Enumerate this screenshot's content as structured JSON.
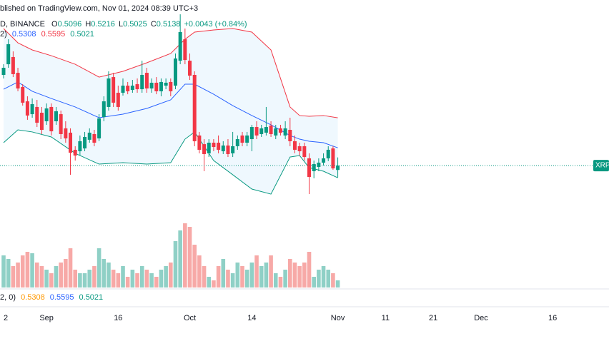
{
  "header": {
    "published": "blished on TradingView.com, Nov 01, 2024 08:39 UTC+3",
    "symbol": "D, BINANCE",
    "ohlc_labels": [
      "O",
      "H",
      "L",
      "C"
    ],
    "change": "+0.0043 (+0.84%)",
    "bands_params": "2)",
    "volume_params": "2, 0)",
    "price_label": "XRP"
  },
  "chart_data": {
    "type": "candlestick",
    "categories": [
      null,
      null,
      null,
      null,
      null,
      null,
      null,
      null,
      null,
      null,
      null,
      null,
      null,
      null,
      null,
      null,
      null,
      null,
      null,
      null,
      null,
      null,
      null,
      null,
      null,
      null,
      null,
      null,
      null,
      null,
      null,
      null,
      null,
      null,
      null,
      null,
      null,
      null,
      null,
      null,
      null,
      null,
      null,
      null,
      null,
      null,
      null,
      null,
      null,
      null,
      null,
      null,
      null,
      null,
      null,
      null,
      null,
      null,
      null,
      null,
      null,
      null,
      null,
      null,
      null,
      null,
      null,
      null,
      null,
      null,
      null
    ],
    "open": [
      0.6006,
      0.6108,
      0.6177,
      0.6026,
      0.589,
      0.5753,
      0.563,
      0.5699,
      0.5644,
      0.5562,
      0.5699,
      0.5562,
      0.563,
      0.5494,
      0.5453,
      0.5289,
      0.5275,
      0.5302,
      0.5385,
      0.5439,
      0.5398,
      0.5603,
      0.5699,
      0.5985,
      0.5835,
      0.5835,
      0.5903,
      0.5862,
      0.5917,
      0.5869,
      0.6026,
      0.5876,
      0.5931,
      0.5849,
      0.5903,
      0.5938,
      0.5903,
      0.6142,
      0.6347,
      0.6142,
      0.6006,
      0.5426,
      0.5343,
      0.5255,
      0.5357,
      0.5357,
      0.5275,
      0.533,
      0.5255,
      0.5323,
      0.5426,
      0.5357,
      0.5391,
      0.5507,
      0.5439,
      0.5453,
      0.5521,
      0.5426,
      0.5494,
      0.5426,
      0.548,
      0.5371,
      0.5323,
      0.5323,
      0.5207,
      0.5084,
      0.5125,
      0.5166,
      0.5207,
      0.5302,
      0.5096
    ],
    "high": [
      0.6108,
      0.6347,
      0.6231,
      0.6074,
      0.5917,
      0.5801,
      0.578,
      0.5767,
      0.5699,
      0.5733,
      0.5733,
      0.5699,
      0.5664,
      0.5562,
      0.5494,
      0.5323,
      0.5426,
      0.546,
      0.5494,
      0.548,
      0.563,
      0.5801,
      0.604,
      0.6026,
      0.5903,
      0.5972,
      0.5938,
      0.5958,
      0.5972,
      0.6142,
      0.6074,
      0.5972,
      0.5985,
      0.5972,
      0.5972,
      0.5972,
      0.6211,
      0.6586,
      0.645,
      0.6211,
      0.604,
      0.546,
      0.5391,
      0.5391,
      0.5391,
      0.5426,
      0.5371,
      0.5391,
      0.546,
      0.5426,
      0.546,
      0.546,
      0.5528,
      0.5562,
      0.5528,
      0.5699,
      0.5562,
      0.5528,
      0.5528,
      0.5562,
      0.5596,
      0.5426,
      0.5357,
      0.5357,
      0.5255,
      0.5186,
      0.5207,
      0.5255,
      0.5323,
      0.5323,
      0.5216
    ],
    "low": [
      0.5972,
      0.6074,
      0.5985,
      0.5849,
      0.5712,
      0.5576,
      0.5596,
      0.5507,
      0.5439,
      0.5528,
      0.5426,
      0.5528,
      0.5391,
      0.5357,
      0.505,
      0.5186,
      0.5234,
      0.5275,
      0.5357,
      0.5323,
      0.5371,
      0.5562,
      0.5664,
      0.5699,
      0.5664,
      0.5808,
      0.5821,
      0.5835,
      0.5835,
      0.5835,
      0.5835,
      0.5835,
      0.5821,
      0.5801,
      0.5869,
      0.5801,
      0.5869,
      0.6108,
      0.6108,
      0.5958,
      0.5323,
      0.5255,
      0.5084,
      0.522,
      0.5275,
      0.5255,
      0.5248,
      0.522,
      0.522,
      0.5289,
      0.5323,
      0.5323,
      0.5275,
      0.5391,
      0.5412,
      0.5426,
      0.5412,
      0.5391,
      0.5426,
      0.5391,
      0.5323,
      0.5255,
      0.5234,
      0.5186,
      0.4865,
      0.5016,
      0.5084,
      0.5138,
      0.518,
      0.5097,
      0.5025
    ],
    "close": [
      0.6074,
      0.63,
      0.6013,
      0.5876,
      0.574,
      0.5617,
      0.5726,
      0.5548,
      0.548,
      0.5685,
      0.5466,
      0.5658,
      0.5439,
      0.5398,
      0.5261,
      0.5234,
      0.5371,
      0.5412,
      0.5453,
      0.5357,
      0.5589,
      0.5753,
      0.5972,
      0.574,
      0.5699,
      0.5903,
      0.5849,
      0.5903,
      0.5869,
      0.6006,
      0.5876,
      0.5931,
      0.5849,
      0.5938,
      0.5931,
      0.5849,
      0.6163,
      0.6416,
      0.6149,
      0.5999,
      0.5371,
      0.5289,
      0.5248,
      0.5357,
      0.5316,
      0.5289,
      0.533,
      0.5248,
      0.5323,
      0.5391,
      0.5357,
      0.5426,
      0.5507,
      0.5426,
      0.5494,
      0.5507,
      0.5439,
      0.5494,
      0.5453,
      0.5494,
      0.5371,
      0.5289,
      0.5275,
      0.522,
      0.5029,
      0.5152,
      0.5166,
      0.5207,
      0.5289,
      0.5111,
      0.5138
    ],
    "volume": [
      45,
      40,
      30,
      35,
      45,
      50,
      48,
      35,
      30,
      25,
      20,
      30,
      35,
      40,
      55,
      25,
      20,
      20,
      25,
      30,
      55,
      40,
      35,
      25,
      20,
      30,
      15,
      25,
      20,
      30,
      25,
      20,
      15,
      25,
      30,
      35,
      65,
      80,
      90,
      85,
      60,
      45,
      30,
      15,
      10,
      30,
      40,
      25,
      20,
      35,
      30,
      25,
      35,
      45,
      30,
      35,
      45,
      20,
      15,
      25,
      40,
      35,
      30,
      35,
      50,
      15,
      25,
      30,
      25,
      20,
      10
    ],
    "up_color": "#089981",
    "down_color": "#f23645",
    "volume_colors": {
      "up": "#8fd0c6",
      "down": "#f7a9a7"
    },
    "bands": [
      {
        "color": "#f23645",
        "x": [
          0,
          3,
          6,
          10,
          15,
          20,
          25,
          30,
          35,
          38,
          40,
          44,
          48,
          52,
          56,
          60,
          62,
          64,
          67,
          70
        ],
        "values": [
          0.645,
          0.6313,
          0.6245,
          0.619,
          0.6108,
          0.5985,
          0.604,
          0.6122,
          0.6211,
          0.6347,
          0.6416,
          0.6436,
          0.645,
          0.6416,
          0.6245,
          0.5699,
          0.5617,
          0.561,
          0.5617,
          0.5595
        ]
      },
      {
        "color": "#2962ff",
        "x": [
          0,
          3,
          6,
          10,
          15,
          20,
          25,
          30,
          35,
          38,
          40,
          44,
          48,
          52,
          56,
          60,
          62,
          64,
          67,
          70
        ],
        "values": [
          0.5869,
          0.5938,
          0.5849,
          0.578,
          0.5699,
          0.5596,
          0.563,
          0.5685,
          0.5767,
          0.5917,
          0.5917,
          0.5821,
          0.5712,
          0.5617,
          0.5528,
          0.5426,
          0.5391,
          0.5371,
          0.5357,
          0.5308
        ]
      },
      {
        "color": "#089981",
        "x": [
          0,
          3,
          6,
          10,
          15,
          20,
          25,
          30,
          35,
          38,
          40,
          44,
          48,
          52,
          56,
          60,
          62,
          64,
          67,
          70
        ],
        "values": [
          0.5357,
          0.548,
          0.546,
          0.5412,
          0.5255,
          0.5152,
          0.5166,
          0.5152,
          0.5166,
          0.5391,
          0.546,
          0.5186,
          0.505,
          0.4913,
          0.4865,
          0.522,
          0.5234,
          0.5118,
          0.5084,
          0.5021
        ]
      }
    ],
    "band_fill": "#2196f3",
    "legend_colors": [
      "#ff9800",
      "#2962ff",
      "#089981"
    ],
    "xlim": [
      -0.75,
      126.8
    ],
    "ylim": [
      0.3957,
      0.6723
    ],
    "vlim": [
      0,
      130
    ],
    "xticks": [
      {
        "value": 0,
        "label": "2"
      },
      {
        "value": 9,
        "label": "Sep"
      },
      {
        "value": 24,
        "label": "16"
      },
      {
        "value": 39,
        "label": "Oct"
      },
      {
        "value": 52,
        "label": "14"
      },
      {
        "value": 70,
        "label": "Nov"
      },
      {
        "value": 80,
        "label": "11"
      },
      {
        "value": 90,
        "label": "21"
      },
      {
        "value": 100,
        "label": "Dec"
      },
      {
        "value": 115,
        "label": "16"
      }
    ]
  }
}
